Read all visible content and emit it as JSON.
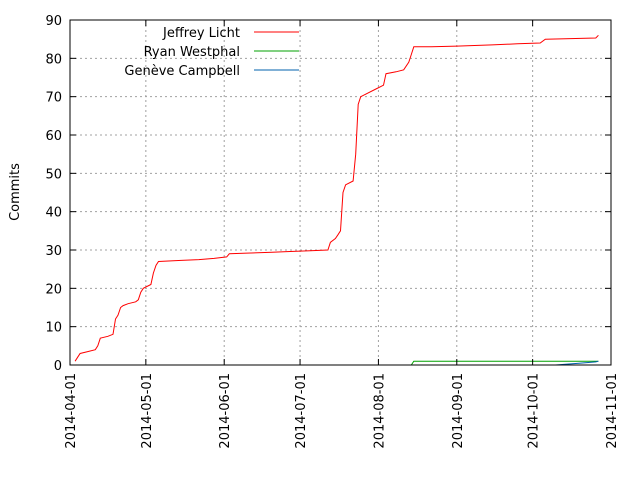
{
  "chart_data": {
    "type": "line",
    "title": "",
    "xlabel": "",
    "ylabel": "Commits",
    "xlim": [
      "2014-04-01",
      "2014-11-01"
    ],
    "ylim": [
      0,
      90
    ],
    "x_ticks": [
      "2014-04-01",
      "2014-05-01",
      "2014-06-01",
      "2014-07-01",
      "2014-08-01",
      "2014-09-01",
      "2014-10-01",
      "2014-11-01"
    ],
    "y_ticks": [
      0,
      10,
      20,
      30,
      40,
      50,
      60,
      70,
      80,
      90
    ],
    "grid": true,
    "legend_position": "top-left",
    "series": [
      {
        "name": "Jeffrey Licht",
        "color": "#ff0000",
        "points": [
          [
            "2014-04-03",
            1
          ],
          [
            "2014-04-04",
            2
          ],
          [
            "2014-04-05",
            3
          ],
          [
            "2014-04-08",
            3.5
          ],
          [
            "2014-04-11",
            4
          ],
          [
            "2014-04-12",
            5
          ],
          [
            "2014-04-13",
            7
          ],
          [
            "2014-04-16",
            7.5
          ],
          [
            "2014-04-18",
            8
          ],
          [
            "2014-04-19",
            12
          ],
          [
            "2014-04-20",
            13
          ],
          [
            "2014-04-21",
            15
          ],
          [
            "2014-04-22",
            15.5
          ],
          [
            "2014-04-24",
            16
          ],
          [
            "2014-04-27",
            16.5
          ],
          [
            "2014-04-28",
            17
          ],
          [
            "2014-04-29",
            19
          ],
          [
            "2014-04-30",
            20
          ],
          [
            "2014-05-03",
            21
          ],
          [
            "2014-05-04",
            24
          ],
          [
            "2014-05-05",
            26
          ],
          [
            "2014-05-06",
            27
          ],
          [
            "2014-05-15",
            27.3
          ],
          [
            "2014-05-22",
            27.5
          ],
          [
            "2014-05-28",
            27.8
          ],
          [
            "2014-06-02",
            28.2
          ],
          [
            "2014-06-03",
            29
          ],
          [
            "2014-06-10",
            29.2
          ],
          [
            "2014-06-20",
            29.4
          ],
          [
            "2014-06-27",
            29.6
          ],
          [
            "2014-07-05",
            29.8
          ],
          [
            "2014-07-12",
            30
          ],
          [
            "2014-07-13",
            32
          ],
          [
            "2014-07-15",
            33
          ],
          [
            "2014-07-16",
            34
          ],
          [
            "2014-07-17",
            35
          ],
          [
            "2014-07-18",
            45
          ],
          [
            "2014-07-19",
            47
          ],
          [
            "2014-07-22",
            48
          ],
          [
            "2014-07-23",
            55
          ],
          [
            "2014-07-24",
            68
          ],
          [
            "2014-07-25",
            70
          ],
          [
            "2014-07-31",
            72
          ],
          [
            "2014-08-03",
            73
          ],
          [
            "2014-08-04",
            76
          ],
          [
            "2014-08-08",
            76.5
          ],
          [
            "2014-08-11",
            77
          ],
          [
            "2014-08-13",
            79
          ],
          [
            "2014-08-14",
            81
          ],
          [
            "2014-08-15",
            83
          ],
          [
            "2014-08-22",
            83
          ],
          [
            "2014-09-01",
            83.2
          ],
          [
            "2014-09-15",
            83.5
          ],
          [
            "2014-09-25",
            83.8
          ],
          [
            "2014-10-04",
            84
          ],
          [
            "2014-10-06",
            85
          ],
          [
            "2014-10-26",
            85.3
          ],
          [
            "2014-10-27",
            86
          ]
        ]
      },
      {
        "name": "Ryan Westphal",
        "color": "#00a000",
        "points": [
          [
            "2014-08-14",
            0
          ],
          [
            "2014-08-15",
            1
          ],
          [
            "2014-10-27",
            1
          ]
        ]
      },
      {
        "name": "Genève Campbell",
        "color": "#0060ad",
        "points": [
          [
            "2014-10-10",
            0
          ],
          [
            "2014-10-20",
            0.5
          ],
          [
            "2014-10-26",
            0.8
          ],
          [
            "2014-10-27",
            1
          ]
        ]
      }
    ]
  }
}
